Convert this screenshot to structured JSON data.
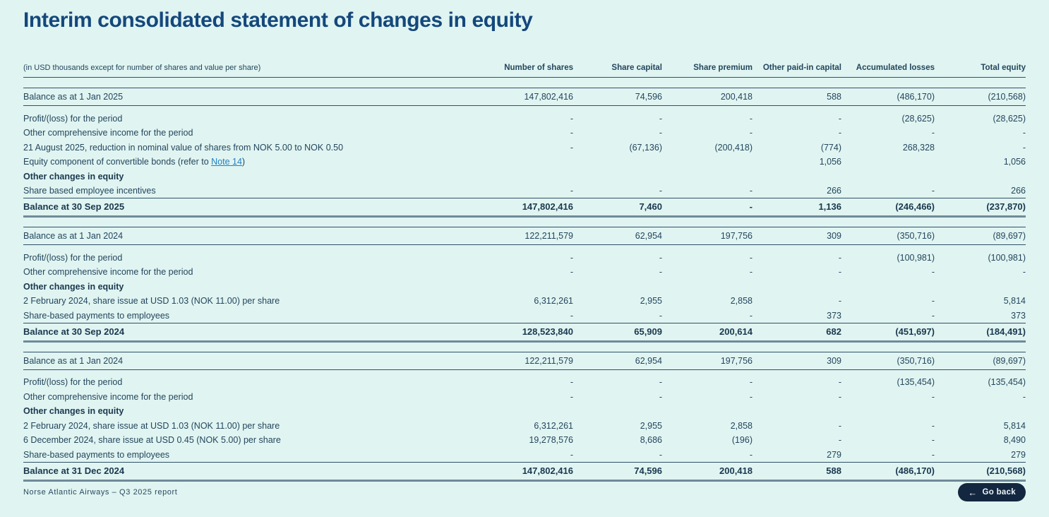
{
  "document": {
    "title": "Interim consolidated statement of changes in equity"
  },
  "table": {
    "unit_note": "(in USD thousands except for number of shares and value per share)",
    "columns": [
      "Number of shares",
      "Share capital",
      "Share premium",
      "Other paid-in capital",
      "Accumulated losses",
      "Total equity"
    ],
    "sections": [
      {
        "opening": {
          "label": "Balance as at 1 Jan 2025",
          "values": [
            "147,802,416",
            "74,596",
            "200,418",
            "588",
            "(486,170)",
            "(210,568)"
          ]
        },
        "rows": [
          {
            "label": "Profit/(loss) for the period",
            "values": [
              "-",
              "-",
              "-",
              "-",
              "(28,625)",
              "(28,625)"
            ]
          },
          {
            "label": "Other comprehensive income for the period",
            "values": [
              "-",
              "-",
              "-",
              "-",
              "-",
              "-"
            ]
          },
          {
            "label": "21 August 2025, reduction in nominal value of shares from NOK 5.00 to NOK 0.50",
            "values": [
              "-",
              "(67,136)",
              "(200,418)",
              "(774)",
              "268,328",
              "-"
            ]
          },
          {
            "label_prefix": "Equity component of convertible bonds (refer to ",
            "link_text": "Note 14",
            "label_suffix": ")",
            "values": [
              "",
              "",
              "",
              "1,056",
              "",
              "1,056"
            ]
          },
          {
            "label": "Other changes in equity",
            "subhead": true,
            "values": [
              "",
              "",
              "",
              "",
              "",
              ""
            ]
          },
          {
            "label": "Share based employee incentives",
            "values": [
              "-",
              "-",
              "-",
              "266",
              "-",
              "266"
            ]
          }
        ],
        "closing": {
          "label": "Balance at 30 Sep 2025",
          "values": [
            "147,802,416",
            "7,460",
            "-",
            "1,136",
            "(246,466)",
            "(237,870)"
          ]
        }
      },
      {
        "opening": {
          "label": "Balance as at 1 Jan 2024",
          "values": [
            "122,211,579",
            "62,954",
            "197,756",
            "309",
            "(350,716)",
            "(89,697)"
          ]
        },
        "rows": [
          {
            "label": "Profit/(loss) for the period",
            "values": [
              "-",
              "-",
              "-",
              "-",
              "(100,981)",
              "(100,981)"
            ]
          },
          {
            "label": "Other comprehensive income for the period",
            "values": [
              "-",
              "-",
              "-",
              "-",
              "-",
              "-"
            ]
          },
          {
            "label": "Other changes in equity",
            "subhead": true,
            "values": [
              "",
              "",
              "",
              "",
              "",
              ""
            ]
          },
          {
            "label": "2 February 2024, share issue at USD 1.03 (NOK 11.00) per share",
            "values": [
              "6,312,261",
              "2,955",
              "2,858",
              "-",
              "-",
              "5,814"
            ]
          },
          {
            "label": "Share-based payments to employees",
            "values": [
              "-",
              "-",
              "-",
              "373",
              "-",
              "373"
            ]
          }
        ],
        "closing": {
          "label": "Balance at 30 Sep 2024",
          "values": [
            "128,523,840",
            "65,909",
            "200,614",
            "682",
            "(451,697)",
            "(184,491)"
          ]
        }
      },
      {
        "opening": {
          "label": "Balance as at 1 Jan 2024",
          "values": [
            "122,211,579",
            "62,954",
            "197,756",
            "309",
            "(350,716)",
            "(89,697)"
          ]
        },
        "rows": [
          {
            "label": "Profit/(loss) for the period",
            "values": [
              "-",
              "-",
              "-",
              "-",
              "(135,454)",
              "(135,454)"
            ]
          },
          {
            "label": "Other comprehensive income for the period",
            "values": [
              "-",
              "-",
              "-",
              "-",
              "-",
              "-"
            ]
          },
          {
            "label": "Other changes in equity",
            "subhead": true,
            "values": [
              "",
              "",
              "",
              "",
              "",
              ""
            ]
          },
          {
            "label": "2 February 2024, share issue at USD 1.03 (NOK 11.00) per share",
            "values": [
              "6,312,261",
              "2,955",
              "2,858",
              "-",
              "-",
              "5,814"
            ]
          },
          {
            "label": "6 December 2024, share issue at USD 0.45 (NOK 5.00) per share",
            "values": [
              "19,278,576",
              "8,686",
              "(196)",
              "-",
              "-",
              "8,490"
            ]
          },
          {
            "label": "Share-based payments to employees",
            "values": [
              "-",
              "-",
              "-",
              "279",
              "-",
              "279"
            ]
          }
        ],
        "closing": {
          "label": "Balance at 31 Dec 2024",
          "values": [
            "147,802,416",
            "74,596",
            "200,418",
            "588",
            "(486,170)",
            "(210,568)"
          ]
        }
      }
    ]
  },
  "footer": {
    "report_label": "Norse Atlantic Airways  –  Q3 2025 report",
    "back_button_label": "Go back",
    "back_arrow": "←"
  },
  "colors": {
    "background": "#e0f4f1",
    "title": "#14487c",
    "text": "#24465e",
    "rule": "#30506a",
    "thick_rule": "#6f8b99",
    "link": "#2380c3",
    "button_bg": "#132740",
    "button_text": "#ecf5f7"
  }
}
